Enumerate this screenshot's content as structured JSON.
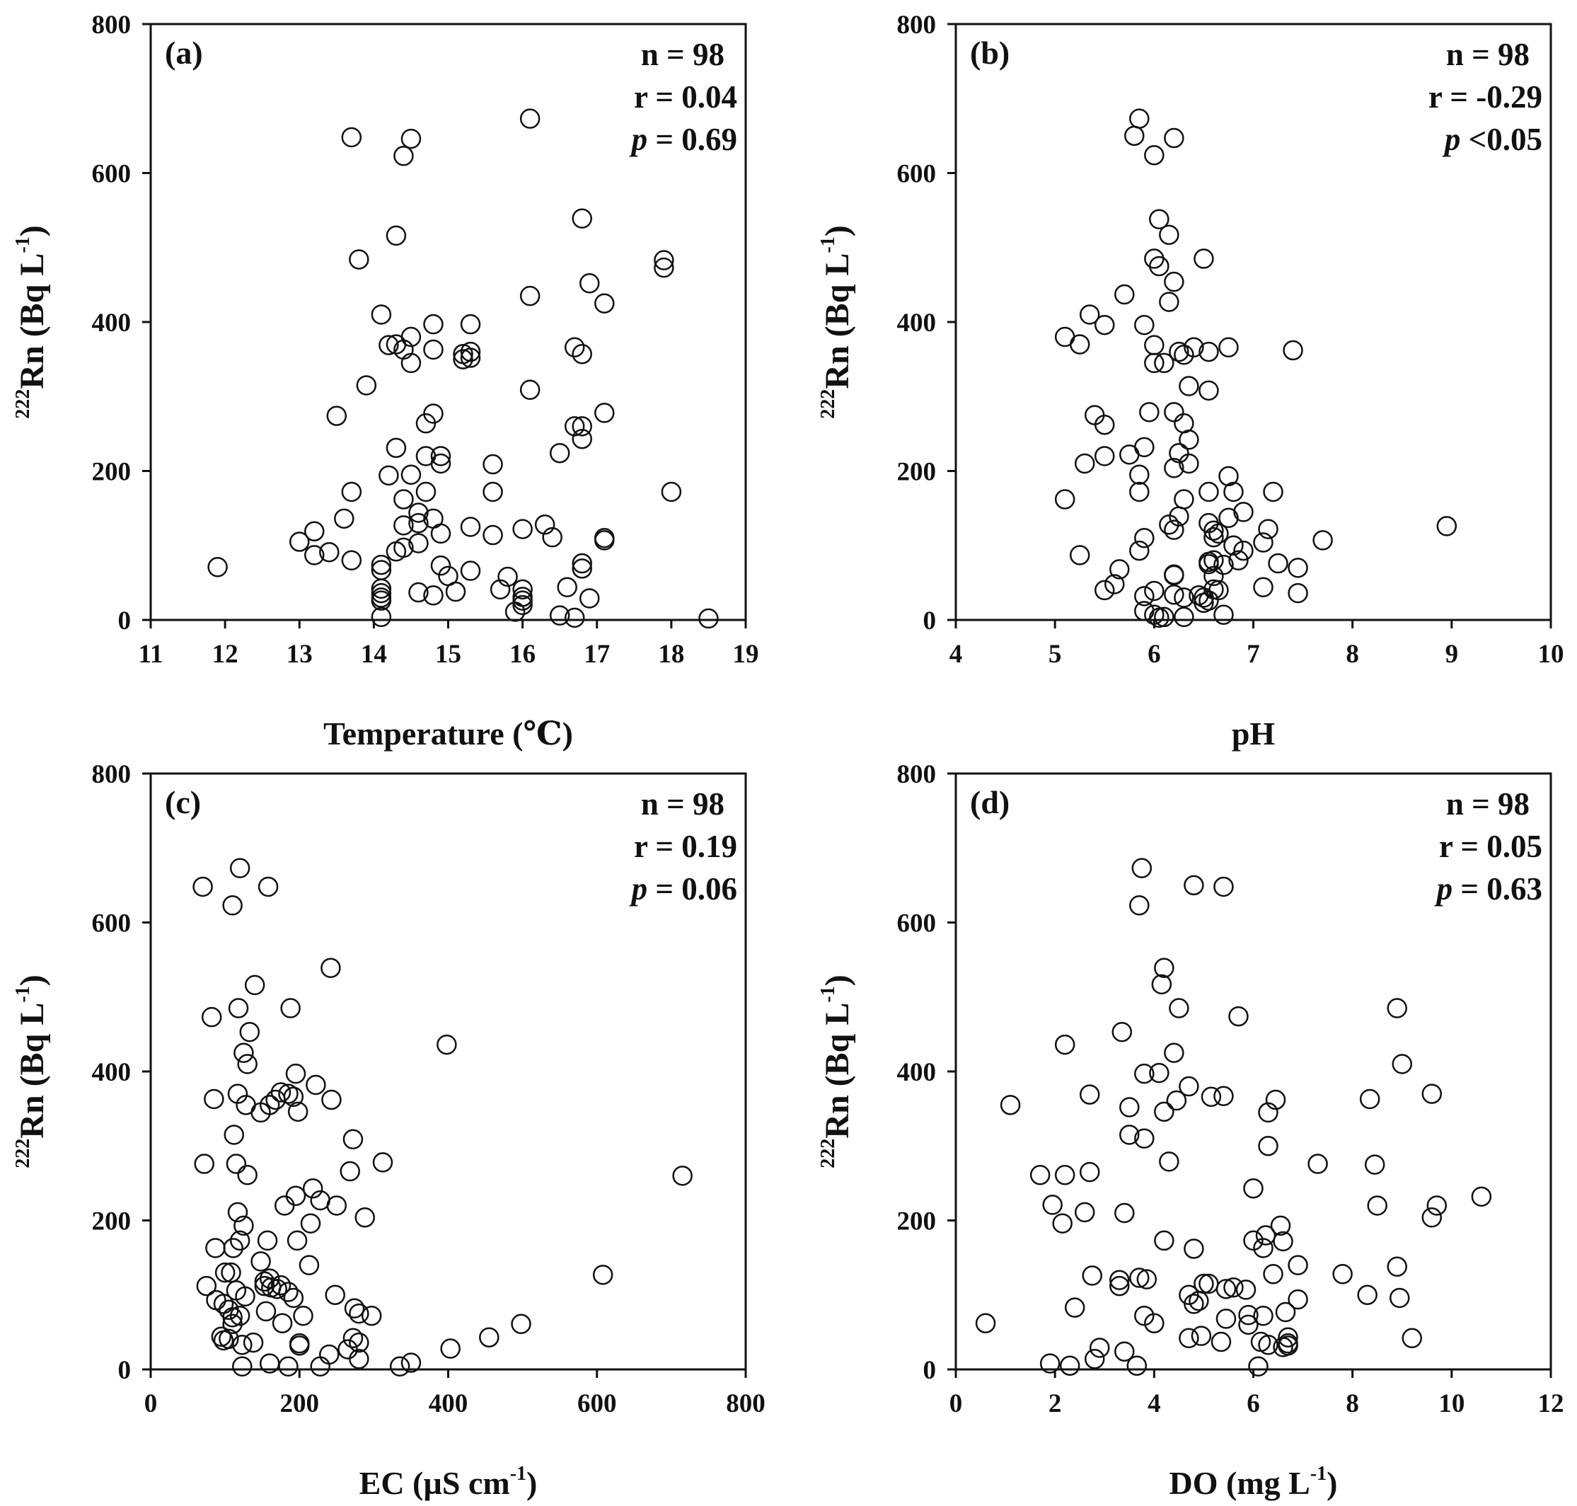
{
  "chart_data": [
    {
      "type": "scatter",
      "panel": "(a)",
      "xlabel": "Temperature (℃)",
      "ylabel": "Rn (Bq L",
      "ylabel_sup_prefix": "222",
      "ylabel_sup_suffix": "-1",
      "ylabel_close": ")",
      "xlim": [
        11,
        19
      ],
      "ylim": [
        0,
        800
      ],
      "xticks": [
        11,
        12,
        13,
        14,
        15,
        16,
        17,
        18,
        19
      ],
      "yticks": [
        0,
        200,
        400,
        600,
        800
      ],
      "stats": {
        "n": "n = 98",
        "r": "r = 0.04",
        "p_label": "p",
        "p_rest": " = 0.69"
      },
      "x": [
        13.7,
        14.5,
        14.4,
        16.1,
        14.3,
        16.8,
        13.8,
        17.9,
        17.9,
        16.9,
        16.1,
        17.1,
        14.1,
        15.3,
        14.8,
        14.2,
        14.3,
        14.4,
        14.8,
        15.2,
        15.3,
        15.3,
        16.7,
        16.8,
        14.5,
        13.9,
        16.1,
        13.5,
        17.1,
        14.8,
        14.7,
        16.7,
        16.8,
        16.8,
        14.3,
        16.5,
        14.7,
        14.9,
        14.2,
        14.9,
        14.5,
        15.6,
        13.7,
        15.6,
        14.7,
        14.4,
        18.0,
        14.6,
        13.6,
        14.8,
        14.4,
        15.3,
        16.3,
        13.2,
        16.0,
        14.9,
        15.6,
        13.0,
        16.4,
        17.1,
        17.1,
        14.6,
        14.4,
        14.3,
        13.4,
        13.2,
        13.7,
        14.1,
        16.8,
        14.9,
        11.9,
        16.8,
        15.3,
        14.1,
        15.0,
        15.8,
        14.1,
        16.6,
        15.7,
        16.0,
        15.1,
        14.6,
        16.0,
        14.8,
        14.1,
        14.1,
        16.9,
        14.1,
        16.0,
        16.0,
        15.9,
        16.5,
        14.1,
        16.7,
        18.5,
        14.5,
        15.2,
        14.6
      ],
      "y": [
        648,
        646,
        623,
        673,
        516,
        539,
        484,
        483,
        473,
        452,
        435,
        425,
        410,
        397,
        397,
        369,
        370,
        363,
        363,
        357,
        360,
        352,
        366,
        357,
        345,
        315,
        309,
        274,
        278,
        277,
        264,
        260,
        260,
        243,
        231,
        224,
        220,
        220,
        194,
        210,
        195,
        209,
        172,
        172,
        172,
        162,
        172,
        144,
        136,
        136,
        127,
        125,
        128,
        119,
        122,
        116,
        114,
        105,
        111,
        110,
        107,
        103,
        97,
        92,
        91,
        87,
        80,
        74,
        76,
        73,
        71,
        69,
        66,
        67,
        59,
        58,
        42,
        44,
        41,
        41,
        38,
        37,
        31,
        33,
        36,
        30,
        29,
        26,
        26,
        20,
        11,
        6,
        4,
        3,
        2,
        380,
        350,
        130
      ]
    },
    {
      "type": "scatter",
      "panel": "(b)",
      "xlabel": "pH",
      "ylabel": "Rn (Bq L",
      "ylabel_sup_prefix": "222",
      "ylabel_sup_suffix": "-1",
      "ylabel_close": ")",
      "xlim": [
        4,
        10
      ],
      "ylim": [
        0,
        800
      ],
      "xticks": [
        4,
        5,
        6,
        7,
        8,
        9,
        10
      ],
      "yticks": [
        0,
        200,
        400,
        600,
        800
      ],
      "stats": {
        "n": "n = 98",
        "r": "r = -0.29",
        "p_label": "p",
        "p_rest": " <0.05"
      },
      "x": [
        5.85,
        5.8,
        6.2,
        6.0,
        6.05,
        6.15,
        6.0,
        6.05,
        6.2,
        6.5,
        5.7,
        6.15,
        5.35,
        5.1,
        5.25,
        5.5,
        5.9,
        6.0,
        6.4,
        6.3,
        6.25,
        6.0,
        6.1,
        6.55,
        6.75,
        7.4,
        6.35,
        6.55,
        5.4,
        5.5,
        5.95,
        6.2,
        6.3,
        5.9,
        5.75,
        5.5,
        6.25,
        6.35,
        5.3,
        5.85,
        6.2,
        6.75,
        5.85,
        5.1,
        6.8,
        6.55,
        6.3,
        7.2,
        6.9,
        6.75,
        6.25,
        6.15,
        6.55,
        6.6,
        5.9,
        6.2,
        7.15,
        6.65,
        6.6,
        7.7,
        8.95,
        6.8,
        6.9,
        7.1,
        5.85,
        5.25,
        6.85,
        7.25,
        6.55,
        6.7,
        6.55,
        5.65,
        6.6,
        7.45,
        6.2,
        6.6,
        6.2,
        5.6,
        7.1,
        6.65,
        6.0,
        6.6,
        5.5,
        5.9,
        6.5,
        7.45,
        6.55,
        6.3,
        6.2,
        5.9,
        6.0,
        6.7,
        6.3,
        6.05,
        6.1,
        6.5,
        6.45,
        6.35
      ],
      "y": [
        673,
        650,
        647,
        624,
        538,
        517,
        485,
        475,
        454,
        485,
        437,
        427,
        410,
        380,
        370,
        396,
        396,
        369,
        366,
        356,
        360,
        345,
        345,
        360,
        366,
        362,
        314,
        308,
        275,
        262,
        279,
        279,
        264,
        232,
        222,
        220,
        224,
        242,
        210,
        195,
        204,
        193,
        172,
        162,
        172,
        172,
        162,
        172,
        145,
        137,
        139,
        128,
        130,
        120,
        110,
        121,
        122,
        116,
        111,
        107,
        126,
        100,
        93,
        104,
        93,
        87,
        80,
        76,
        75,
        74,
        78,
        68,
        80,
        70,
        60,
        59,
        61,
        48,
        44,
        40,
        39,
        41,
        40,
        32,
        30,
        36,
        26,
        30,
        34,
        12,
        7,
        7,
        4,
        3,
        4,
        23,
        33,
        210
      ]
    },
    {
      "type": "scatter",
      "panel": "(c)",
      "xlabel": "EC (µS cm",
      "xlabel_sup": "-1",
      "xlabel_close": ")",
      "ylabel": "Rn (Bq L",
      "ylabel_sup_prefix": "222",
      "ylabel_sup_suffix": "-1",
      "ylabel_close": ")",
      "xlim": [
        0,
        800
      ],
      "ylim": [
        0,
        800
      ],
      "xticks": [
        0,
        200,
        400,
        600,
        800
      ],
      "yticks": [
        0,
        200,
        400,
        600,
        800
      ],
      "stats": {
        "n": "n = 98",
        "r": "r = 0.19",
        "p_label": "p",
        "p_rest": " = 0.06"
      },
      "x": [
        70,
        120,
        110,
        158,
        140,
        242,
        118,
        188,
        82,
        398,
        133,
        125,
        130,
        195,
        222,
        85,
        117,
        243,
        185,
        192,
        175,
        168,
        160,
        148,
        198,
        128,
        112,
        715,
        72,
        115,
        130,
        272,
        312,
        268,
        218,
        228,
        195,
        250,
        180,
        215,
        288,
        117,
        125,
        157,
        197,
        120,
        87,
        111,
        213,
        148,
        108,
        608,
        160,
        75,
        162,
        170,
        153,
        115,
        153,
        175,
        185,
        192,
        88,
        127,
        248,
        98,
        274,
        155,
        105,
        120,
        280,
        205,
        297,
        110,
        177,
        498,
        110,
        272,
        200,
        455,
        240,
        98,
        105,
        265,
        280,
        403,
        95,
        123,
        138,
        200,
        185,
        123,
        228,
        335,
        350,
        160,
        280,
        100
      ],
      "y": [
        648,
        673,
        623,
        648,
        516,
        539,
        485,
        485,
        473,
        436,
        453,
        425,
        410,
        397,
        382,
        363,
        370,
        362,
        370,
        366,
        372,
        362,
        355,
        345,
        346,
        355,
        315,
        260,
        276,
        276,
        261,
        309,
        278,
        266,
        243,
        227,
        233,
        220,
        220,
        196,
        204,
        211,
        193,
        173,
        173,
        173,
        163,
        163,
        140,
        145,
        130,
        127,
        122,
        112,
        110,
        108,
        112,
        106,
        118,
        113,
        104,
        96,
        93,
        98,
        100,
        88,
        82,
        78,
        80,
        72,
        75,
        72,
        72,
        70,
        62,
        61,
        61,
        42,
        35,
        43,
        20,
        39,
        41,
        27,
        36,
        28,
        44,
        33,
        36,
        32,
        4,
        4,
        4,
        4,
        9,
        8,
        14,
        130
      ]
    },
    {
      "type": "scatter",
      "panel": "(d)",
      "xlabel": "DO (mg L",
      "xlabel_sup": "-1",
      "xlabel_close": ")",
      "ylabel": "Rn (Bq L",
      "ylabel_sup_prefix": "222",
      "ylabel_sup_suffix": "-1",
      "ylabel_close": ")",
      "xlim": [
        0,
        12
      ],
      "ylim": [
        0,
        800
      ],
      "xticks": [
        0,
        2,
        4,
        6,
        8,
        10,
        12
      ],
      "yticks": [
        0,
        200,
        400,
        600,
        800
      ],
      "stats": {
        "n": "n = 98",
        "r": "r = 0.05",
        "p_label": "p",
        "p_rest": " = 0.63"
      },
      "x": [
        3.75,
        4.8,
        5.4,
        3.7,
        4.2,
        4.15,
        4.5,
        5.7,
        8.9,
        3.35,
        2.2,
        4.4,
        9.0,
        3.8,
        4.1,
        9.6,
        4.7,
        1.1,
        2.7,
        5.4,
        5.15,
        3.5,
        6.45,
        4.45,
        8.35,
        4.2,
        6.3,
        3.5,
        3.8,
        7.3,
        8.45,
        1.7,
        2.2,
        2.7,
        6.0,
        10.6,
        4.3,
        1.95,
        2.6,
        8.5,
        3.4,
        9.6,
        2.15,
        6.55,
        6.0,
        4.2,
        6.6,
        6.2,
        4.8,
        6.9,
        8.9,
        7.8,
        6.4,
        2.75,
        3.7,
        3.85,
        5.0,
        5.1,
        3.3,
        5.6,
        5.45,
        5.85,
        4.7,
        8.95,
        4.9,
        6.9,
        4.8,
        2.4,
        3.8,
        5.9,
        6.65,
        5.45,
        6.2,
        4.0,
        0.6,
        9.2,
        4.95,
        6.7,
        6.7,
        4.7,
        6.15,
        6.3,
        5.35,
        2.9,
        3.4,
        6.6,
        6.7,
        2.8,
        1.9,
        3.65,
        2.3,
        6.1,
        3.3,
        6.3,
        6.25,
        8.3,
        9.7,
        5.9
      ],
      "y": [
        673,
        650,
        648,
        623,
        539,
        517,
        485,
        474,
        485,
        453,
        436,
        425,
        410,
        397,
        398,
        370,
        380,
        355,
        369,
        367,
        366,
        352,
        362,
        361,
        363,
        346,
        345,
        315,
        310,
        276,
        275,
        261,
        261,
        265,
        243,
        232,
        279,
        221,
        211,
        220,
        210,
        204,
        196,
        193,
        173,
        173,
        172,
        163,
        162,
        140,
        138,
        128,
        128,
        126,
        123,
        121,
        115,
        115,
        112,
        110,
        108,
        107,
        100,
        96,
        92,
        94,
        88,
        83,
        72,
        73,
        77,
        68,
        72,
        62,
        62,
        42,
        45,
        43,
        35,
        42,
        37,
        33,
        37,
        29,
        24,
        30,
        32,
        14,
        8,
        5,
        5,
        4,
        120,
        300,
        180,
        100,
        220,
        60
      ]
    }
  ]
}
